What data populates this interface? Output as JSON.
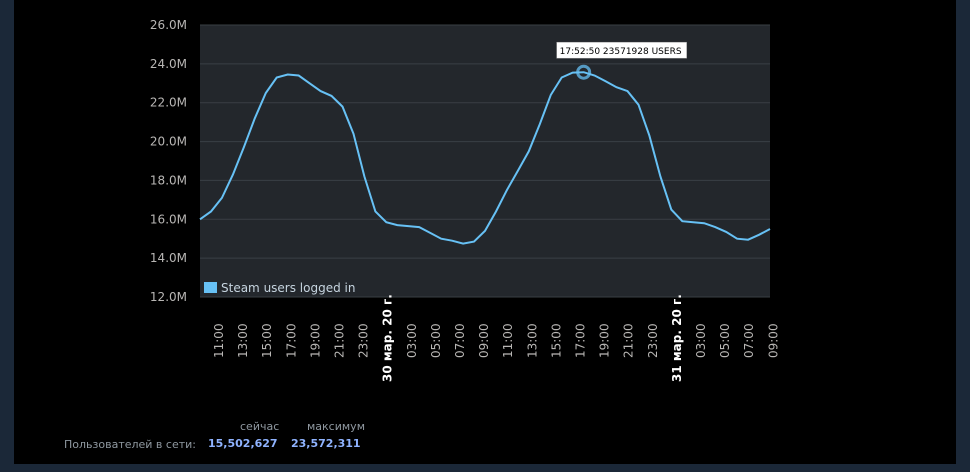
{
  "chart_data": {
    "type": "line",
    "series": [
      {
        "name": "Steam users logged in",
        "color": "#67c1f5",
        "x_ticks_note": "",
        "points": [
          [
            "10:00",
            16.0
          ],
          [
            "11:00",
            16.4
          ],
          [
            "12:00",
            17.1
          ],
          [
            "13:00",
            18.3
          ],
          [
            "14:00",
            19.7
          ],
          [
            "15:00",
            21.2
          ],
          [
            "16:00",
            22.5
          ],
          [
            "17:00",
            23.3
          ],
          [
            "17:30",
            23.45
          ],
          [
            "18:00",
            23.4
          ],
          [
            "19:00",
            23.0
          ],
          [
            "20:00",
            22.6
          ],
          [
            "21:00",
            22.35
          ],
          [
            "22:00",
            21.8
          ],
          [
            "23:00",
            20.4
          ],
          [
            "00:00",
            18.2
          ],
          [
            "01:00",
            16.4
          ],
          [
            "02:00",
            15.85
          ],
          [
            "03:00",
            15.7
          ],
          [
            "04:00",
            15.65
          ],
          [
            "05:00",
            15.6
          ],
          [
            "06:00",
            15.3
          ],
          [
            "07:00",
            15.0
          ],
          [
            "07:40",
            14.9
          ],
          [
            "08:00",
            14.75
          ],
          [
            "08:20",
            14.85
          ],
          [
            "09:00",
            15.4
          ],
          [
            "10:00",
            16.4
          ],
          [
            "11:00",
            17.5
          ],
          [
            "12:00",
            18.5
          ],
          [
            "13:00",
            19.5
          ],
          [
            "14:00",
            20.9
          ],
          [
            "15:00",
            22.4
          ],
          [
            "16:00",
            23.3
          ],
          [
            "17:00",
            23.55
          ],
          [
            "17:52",
            23.57
          ],
          [
            "18:30",
            23.4
          ],
          [
            "19:00",
            23.1
          ],
          [
            "20:00",
            22.8
          ],
          [
            "21:00",
            22.6
          ],
          [
            "22:00",
            21.9
          ],
          [
            "23:00",
            20.3
          ],
          [
            "00:00",
            18.2
          ],
          [
            "01:00",
            16.5
          ],
          [
            "02:00",
            15.9
          ],
          [
            "03:00",
            15.85
          ],
          [
            "04:00",
            15.8
          ],
          [
            "05:00",
            15.6
          ],
          [
            "06:00",
            15.35
          ],
          [
            "07:00",
            15.0
          ],
          [
            "08:00",
            14.95
          ],
          [
            "09:00",
            15.2
          ],
          [
            "09:40",
            15.5
          ]
        ]
      }
    ],
    "y_unit": "M",
    "ylim": [
      12.0,
      26.0
    ],
    "yticks": [
      "26.0M",
      "24.0M",
      "22.0M",
      "20.0M",
      "18.0M",
      "16.0M",
      "14.0M",
      "12.0M"
    ],
    "xticks": [
      "11:00",
      "13:00",
      "15:00",
      "17:00",
      "19:00",
      "21:00",
      "23:00",
      "30 мар. 20 г.",
      "03:00",
      "05:00",
      "07:00",
      "09:00",
      "11:00",
      "13:00",
      "15:00",
      "17:00",
      "19:00",
      "21:00",
      "23:00",
      "31 мар. 20 г.",
      "03:00",
      "05:00",
      "07:00",
      "09:00"
    ],
    "legend": {
      "label": "Steam users logged in",
      "placement": "bottom-left"
    },
    "tooltip": {
      "text": "17:52:50 23571928 USERS",
      "time": "17:52:50",
      "value": 23571928
    },
    "grid": true
  },
  "stats": {
    "now_header": "сейчас",
    "max_header": "максимум",
    "row_label": "Пользователей в сети:",
    "now_value": "15,502,627",
    "max_value": "23,572,311"
  },
  "colors": {
    "background": "#000000",
    "plot_background": "#23272c",
    "line": "#67c1f5",
    "stat_value": "#8fb3ff"
  }
}
